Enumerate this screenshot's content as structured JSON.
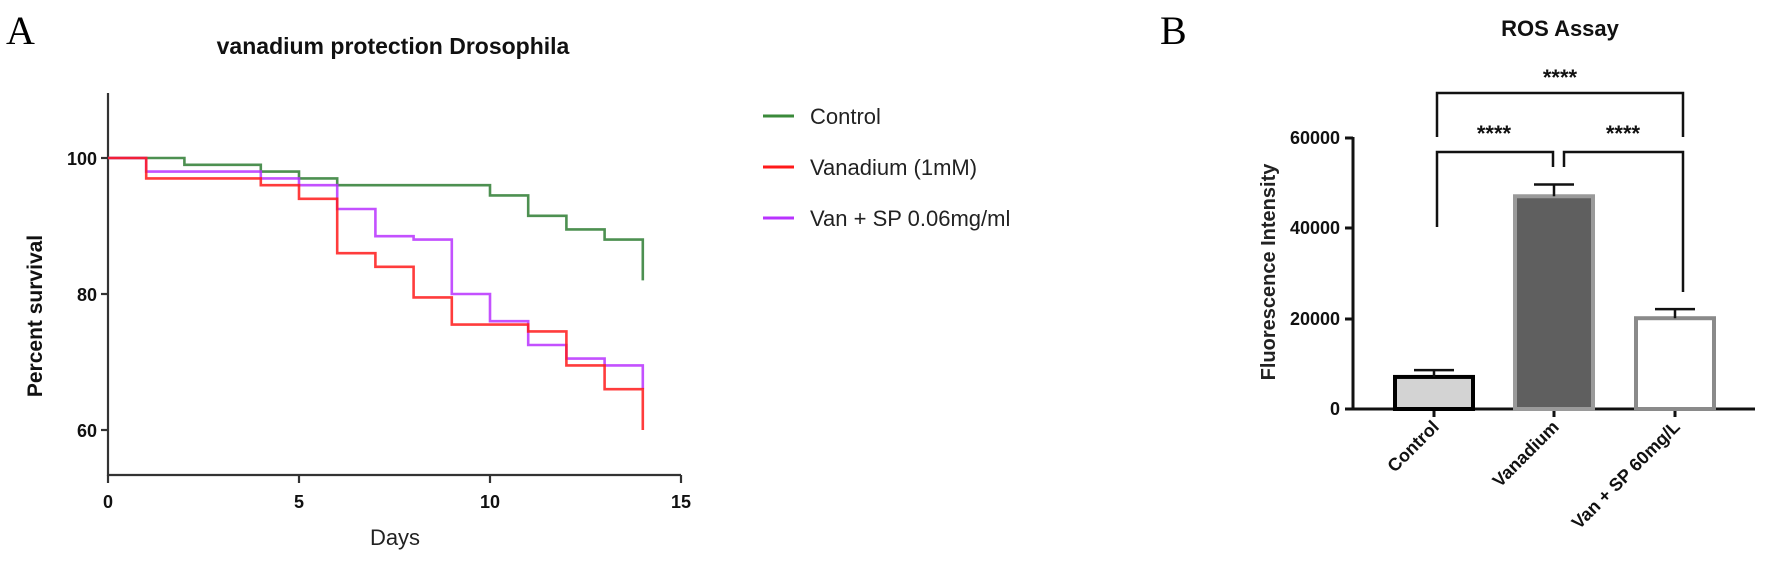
{
  "chart_data": [
    {
      "panel": "A",
      "type": "line",
      "subtype": "step (Kaplan-Meier survival)",
      "title": "vanadium protection Drosophila",
      "xlabel": "Days",
      "ylabel": "Percent survival",
      "xlim": [
        0,
        15
      ],
      "ylim": [
        53,
        110
      ],
      "xticks": [
        0,
        5,
        10,
        15
      ],
      "yticks": [
        60,
        80,
        100
      ],
      "grid": false,
      "legend_position": "right",
      "series": [
        {
          "name": "Control",
          "color": "#2e7d32",
          "x": [
            0,
            2,
            4,
            5,
            6,
            10,
            11,
            12,
            13,
            14
          ],
          "y": [
            100,
            99,
            98,
            97,
            96,
            94.5,
            91.5,
            89.5,
            88,
            82
          ]
        },
        {
          "name": "Vanadium (1mM)",
          "color": "#ff1a1a",
          "x": [
            0,
            1,
            4,
            5,
            6,
            7,
            8,
            9,
            11,
            12,
            13,
            14
          ],
          "y": [
            100,
            97,
            96,
            94,
            86,
            84,
            79.5,
            75.5,
            74.5,
            69.5,
            66,
            60
          ]
        },
        {
          "name": "Van + SP 0.06mg/ml",
          "color": "#b833ff",
          "x": [
            0,
            1,
            4,
            5,
            6,
            7,
            8,
            9,
            10,
            11,
            12,
            13,
            14
          ],
          "y": [
            100,
            98,
            97,
            96,
            92.5,
            88.5,
            88,
            80,
            76,
            72.5,
            70.5,
            69.5,
            66
          ]
        }
      ]
    },
    {
      "panel": "B",
      "type": "bar",
      "title": "ROS Assay",
      "xlabel": "",
      "ylabel": "Fluorescence Intensity",
      "ylim": [
        0,
        60000
      ],
      "yticks": [
        0,
        20000,
        40000,
        60000
      ],
      "grid": false,
      "categories": [
        "Control",
        "Vanadium",
        "Van + SP 60mg/L"
      ],
      "values": [
        7100,
        47100,
        20100
      ],
      "error_upper": [
        8600,
        49700,
        22100
      ],
      "bar_fill": [
        "#d3d3d3",
        "#5f5f5f",
        "#ffffff"
      ],
      "bar_edge": [
        "#000000",
        "#9a9a9a",
        "#8a8a8a"
      ],
      "significance": [
        {
          "pair": [
            "Control",
            "Vanadium"
          ],
          "label": "****"
        },
        {
          "pair": [
            "Vanadium",
            "Van + SP 60mg/L"
          ],
          "label": "****"
        },
        {
          "pair": [
            "Control",
            "Van + SP 60mg/L"
          ],
          "label": "****"
        }
      ]
    }
  ],
  "panelA": {
    "letter": "A",
    "title": "vanadium protection Drosophila",
    "ylabel": "Percent survival",
    "xlabel": "Days",
    "yticks": [
      "100",
      "80",
      "60"
    ],
    "xticks": [
      "0",
      "5",
      "10",
      "15"
    ],
    "legend": [
      "Control",
      "Vanadium (1mM)",
      "Van + SP 0.06mg/ml"
    ]
  },
  "panelB": {
    "letter": "B",
    "title": "ROS Assay",
    "ylabel": "Fluorescence Intensity",
    "yticks": [
      "60000",
      "40000",
      "20000",
      "0"
    ],
    "categories": [
      "Control",
      "Vanadium",
      "Van + SP 60mg/L"
    ],
    "stars": [
      "****",
      "****",
      "****"
    ]
  }
}
